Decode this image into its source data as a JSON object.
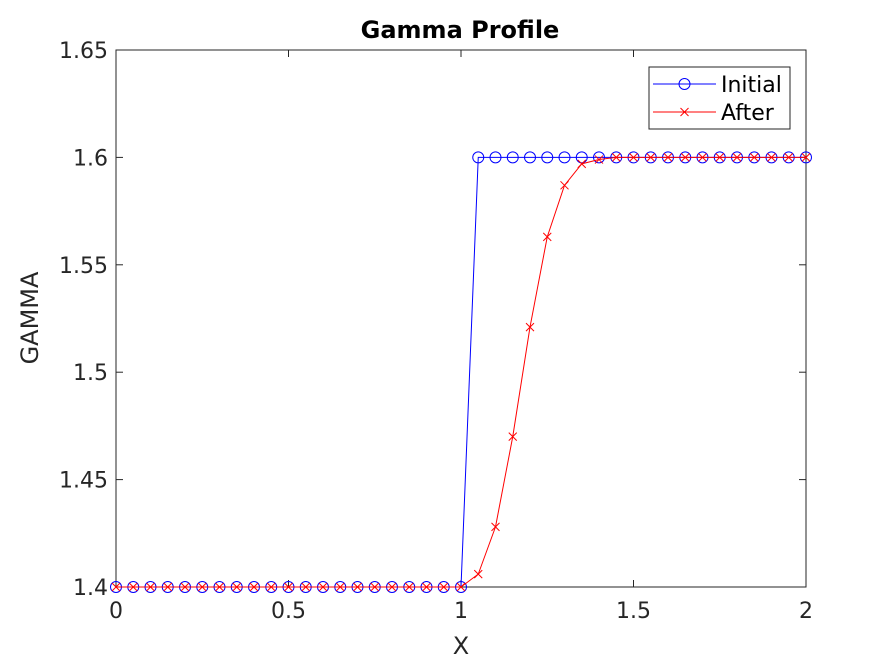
{
  "chart_data": {
    "type": "line",
    "title": "Gamma Profile",
    "xlabel": "X",
    "ylabel": "GAMMA",
    "xlim": [
      0,
      2
    ],
    "ylim": [
      1.4,
      1.65
    ],
    "xticks": [
      0,
      0.5,
      1,
      1.5,
      2
    ],
    "xtick_labels": [
      "0",
      "0.5",
      "1",
      "1.5",
      "2"
    ],
    "yticks": [
      1.4,
      1.45,
      1.5,
      1.55,
      1.6,
      1.65
    ],
    "ytick_labels": [
      "1.4",
      "1.45",
      "1.5",
      "1.55",
      "1.6",
      "1.65"
    ],
    "grid": false,
    "legend_position": "top-right",
    "series": [
      {
        "name": "Initial",
        "color": "#0000ff",
        "marker": "circle",
        "x": [
          0,
          0.05,
          0.1,
          0.15,
          0.2,
          0.25,
          0.3,
          0.35,
          0.4,
          0.45,
          0.5,
          0.55,
          0.6,
          0.65,
          0.7,
          0.75,
          0.8,
          0.85,
          0.9,
          0.95,
          1.0,
          1.05,
          1.1,
          1.15,
          1.2,
          1.25,
          1.3,
          1.35,
          1.4,
          1.45,
          1.5,
          1.55,
          1.6,
          1.65,
          1.7,
          1.75,
          1.8,
          1.85,
          1.9,
          1.95,
          2.0
        ],
        "y": [
          1.4,
          1.4,
          1.4,
          1.4,
          1.4,
          1.4,
          1.4,
          1.4,
          1.4,
          1.4,
          1.4,
          1.4,
          1.4,
          1.4,
          1.4,
          1.4,
          1.4,
          1.4,
          1.4,
          1.4,
          1.4,
          1.6,
          1.6,
          1.6,
          1.6,
          1.6,
          1.6,
          1.6,
          1.6,
          1.6,
          1.6,
          1.6,
          1.6,
          1.6,
          1.6,
          1.6,
          1.6,
          1.6,
          1.6,
          1.6,
          1.6
        ]
      },
      {
        "name": "After",
        "color": "#ff0000",
        "marker": "x",
        "x": [
          0,
          0.05,
          0.1,
          0.15,
          0.2,
          0.25,
          0.3,
          0.35,
          0.4,
          0.45,
          0.5,
          0.55,
          0.6,
          0.65,
          0.7,
          0.75,
          0.8,
          0.85,
          0.9,
          0.95,
          1.0,
          1.05,
          1.1,
          1.15,
          1.2,
          1.25,
          1.3,
          1.35,
          1.4,
          1.45,
          1.5,
          1.55,
          1.6,
          1.65,
          1.7,
          1.75,
          1.8,
          1.85,
          1.9,
          1.95,
          2.0
        ],
        "y": [
          1.4,
          1.4,
          1.4,
          1.4,
          1.4,
          1.4,
          1.4,
          1.4,
          1.4,
          1.4,
          1.4,
          1.4,
          1.4,
          1.4,
          1.4,
          1.4,
          1.4,
          1.4,
          1.4,
          1.4,
          1.4,
          1.406,
          1.428,
          1.47,
          1.521,
          1.563,
          1.587,
          1.597,
          1.599,
          1.6,
          1.6,
          1.6,
          1.6,
          1.6,
          1.6,
          1.6,
          1.6,
          1.6,
          1.6,
          1.6,
          1.6
        ]
      }
    ]
  }
}
